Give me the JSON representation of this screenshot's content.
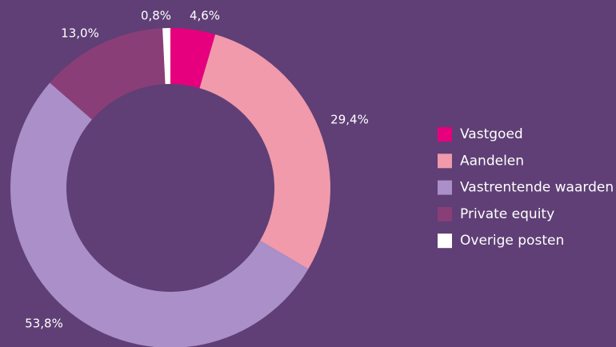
{
  "chart_data": {
    "type": "donut",
    "categories": [
      "Vastgoed",
      "Aandelen",
      "Vastrentende waarden",
      "Private equity",
      "Overige posten"
    ],
    "values": [
      4.6,
      29.4,
      53.8,
      13.0,
      0.8
    ],
    "value_labels": [
      "4,6%",
      "29,4%",
      "53,8%",
      "13,0%",
      "0,8%"
    ],
    "colors": [
      "#e6007e",
      "#f09aab",
      "#aa8fc8",
      "#8a3e78",
      "#ffffff"
    ],
    "legend": "right"
  }
}
